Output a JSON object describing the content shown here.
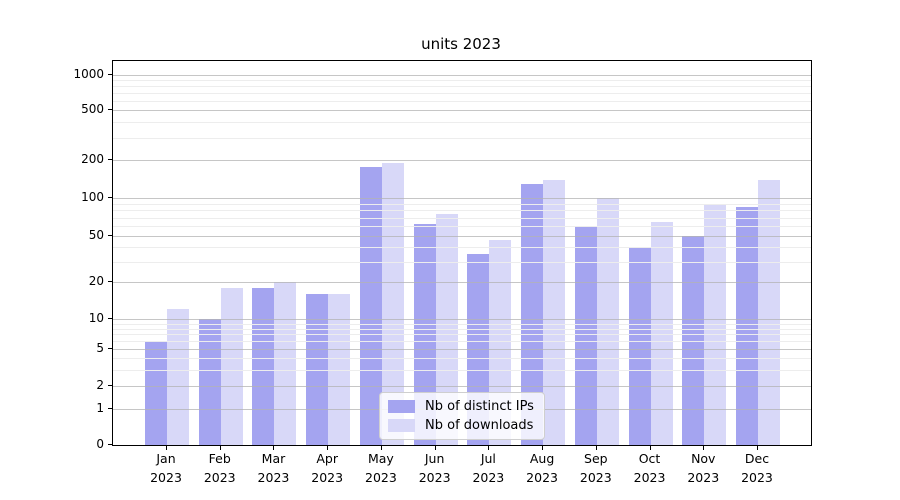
{
  "chart_data": {
    "type": "bar",
    "title": "units 2023",
    "categories": [
      "Jan",
      "Feb",
      "Mar",
      "Apr",
      "May",
      "Jun",
      "Jul",
      "Aug",
      "Sep",
      "Oct",
      "Nov",
      "Dec"
    ],
    "year_label": "2023",
    "series": [
      {
        "name": "Nb of distinct IPs",
        "color": "#a4a4f0",
        "values": [
          6,
          10,
          18,
          16,
          175,
          62,
          35,
          130,
          60,
          40,
          50,
          85
        ]
      },
      {
        "name": "Nb of downloads",
        "color": "#d8d8f8",
        "values": [
          12,
          18,
          20,
          16,
          190,
          75,
          46,
          140,
          100,
          65,
          90,
          140
        ]
      }
    ],
    "yscale": "symlog",
    "yticks": [
      0,
      1,
      2,
      5,
      10,
      20,
      50,
      100,
      200,
      500,
      1000
    ],
    "minor_yticks": [
      3,
      4,
      6,
      7,
      8,
      9,
      30,
      40,
      60,
      70,
      80,
      90,
      300,
      400,
      600,
      700,
      800,
      900
    ],
    "ylim": [
      0,
      1400
    ],
    "grid": true,
    "legend_position": "lower center"
  }
}
